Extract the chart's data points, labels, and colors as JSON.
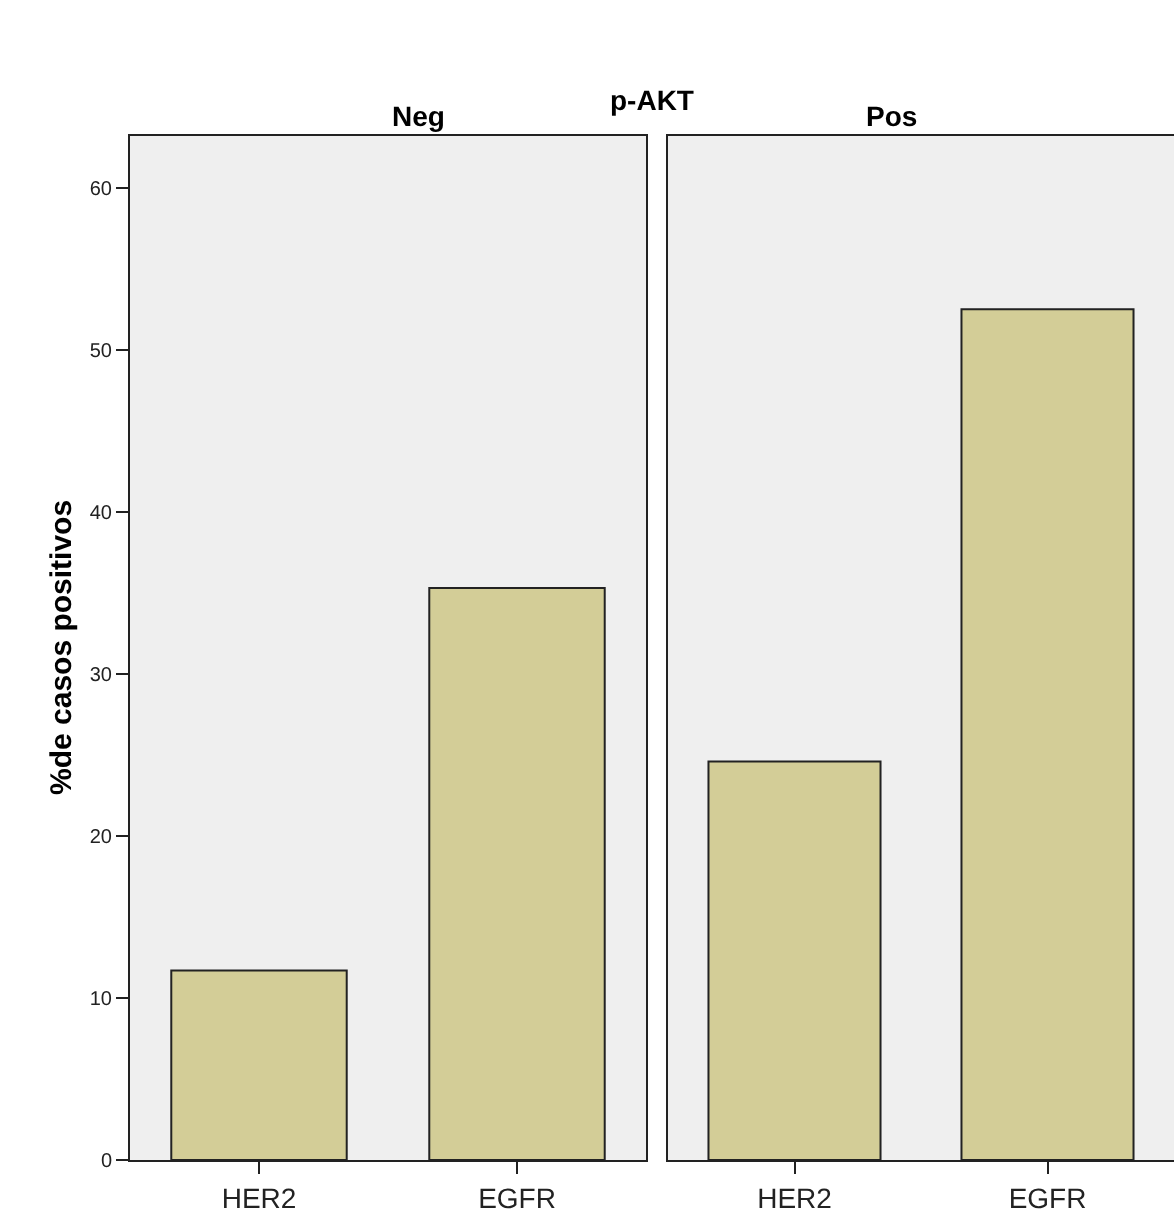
{
  "chart_data": [
    {
      "type": "bar",
      "title": "Neg",
      "annotations": [
        "p-AKT"
      ],
      "ylabel": "%de casos positivos",
      "categories": [
        "HER2",
        "EGFR"
      ],
      "values": [
        11.7,
        35.3
      ],
      "color": "#d3cd97",
      "ylim": [
        0,
        63.2
      ],
      "yticks": [
        0,
        10,
        20,
        30,
        40,
        50,
        60
      ],
      "grid": false
    },
    {
      "type": "bar",
      "title": "Pos",
      "categories": [
        "HER2",
        "EGFR"
      ],
      "values": [
        24.6,
        52.5
      ],
      "color": "#d3cd97",
      "ylim": [
        0,
        63.2
      ],
      "tick_labels": "x",
      "grid": false
    }
  ]
}
